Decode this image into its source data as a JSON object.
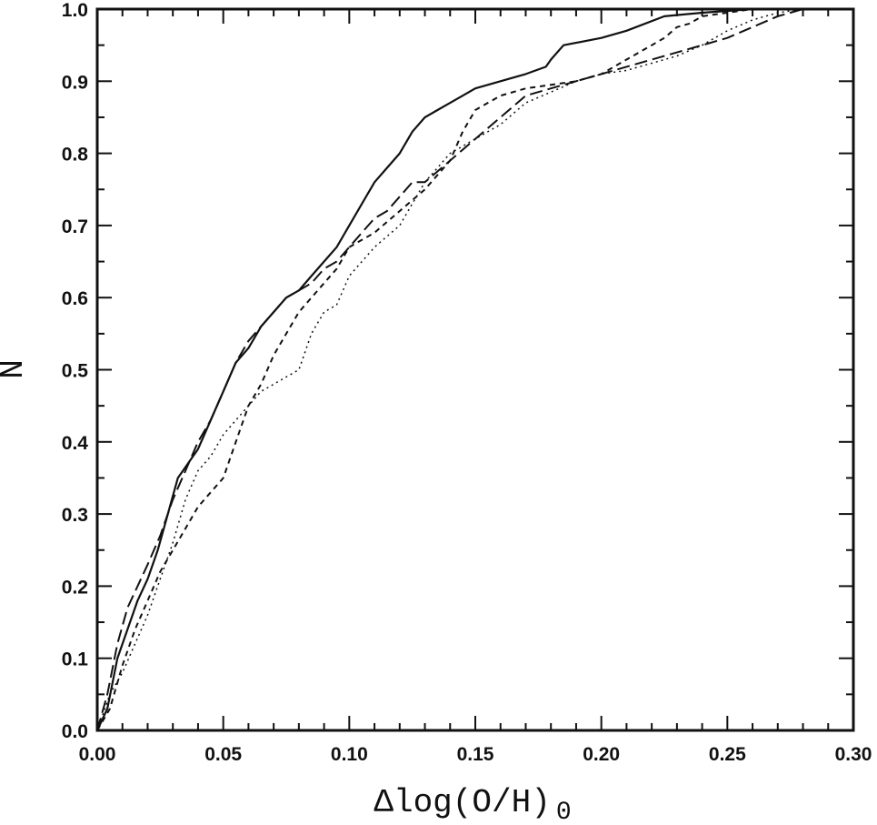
{
  "chart_data": {
    "type": "line",
    "title": "",
    "xlabel": "Δlog(O/H)",
    "xlabel_subscript": "0",
    "ylabel": "N",
    "xlim": [
      0.0,
      0.3
    ],
    "ylim": [
      0.0,
      1.0
    ],
    "xticks": [
      "0.00",
      "0.05",
      "0.10",
      "0.15",
      "0.20",
      "0.25",
      "0.30"
    ],
    "yticks": [
      "0.0",
      "0.1",
      "0.2",
      "0.3",
      "0.4",
      "0.5",
      "0.6",
      "0.7",
      "0.8",
      "0.9",
      "1.0"
    ],
    "grid": false,
    "legend": "none",
    "series": [
      {
        "style": "solid",
        "x": [
          0.0,
          0.004,
          0.008,
          0.012,
          0.016,
          0.02,
          0.024,
          0.028,
          0.032,
          0.036,
          0.04,
          0.045,
          0.05,
          0.055,
          0.06,
          0.065,
          0.07,
          0.075,
          0.08,
          0.085,
          0.09,
          0.095,
          0.1,
          0.105,
          0.11,
          0.115,
          0.12,
          0.125,
          0.13,
          0.135,
          0.14,
          0.145,
          0.15,
          0.16,
          0.17,
          0.178,
          0.18,
          0.185,
          0.2,
          0.21,
          0.225,
          0.24,
          0.26,
          0.29
        ],
        "y": [
          0.0,
          0.03,
          0.1,
          0.14,
          0.18,
          0.21,
          0.25,
          0.3,
          0.35,
          0.37,
          0.39,
          0.43,
          0.47,
          0.51,
          0.53,
          0.56,
          0.58,
          0.6,
          0.61,
          0.63,
          0.65,
          0.67,
          0.7,
          0.73,
          0.76,
          0.78,
          0.8,
          0.83,
          0.85,
          0.86,
          0.87,
          0.88,
          0.89,
          0.9,
          0.91,
          0.92,
          0.93,
          0.95,
          0.96,
          0.97,
          0.99,
          0.995,
          1.0,
          1.0
        ]
      },
      {
        "style": "long-dash",
        "x": [
          0.0,
          0.004,
          0.008,
          0.012,
          0.016,
          0.02,
          0.025,
          0.03,
          0.035,
          0.04,
          0.045,
          0.05,
          0.055,
          0.06,
          0.065,
          0.07,
          0.075,
          0.08,
          0.085,
          0.09,
          0.095,
          0.1,
          0.105,
          0.11,
          0.115,
          0.12,
          0.125,
          0.13,
          0.14,
          0.15,
          0.16,
          0.17,
          0.18,
          0.19,
          0.2,
          0.21,
          0.22,
          0.23,
          0.24,
          0.25,
          0.26,
          0.27,
          0.28,
          0.29
        ],
        "y": [
          0.0,
          0.05,
          0.12,
          0.17,
          0.2,
          0.23,
          0.27,
          0.32,
          0.36,
          0.4,
          0.43,
          0.47,
          0.51,
          0.54,
          0.56,
          0.58,
          0.6,
          0.61,
          0.62,
          0.64,
          0.65,
          0.67,
          0.69,
          0.71,
          0.72,
          0.74,
          0.76,
          0.76,
          0.79,
          0.82,
          0.85,
          0.88,
          0.89,
          0.9,
          0.91,
          0.92,
          0.93,
          0.94,
          0.95,
          0.96,
          0.975,
          0.99,
          1.0,
          1.0
        ]
      },
      {
        "style": "short-dash",
        "x": [
          0.0,
          0.005,
          0.01,
          0.015,
          0.02,
          0.025,
          0.03,
          0.035,
          0.04,
          0.045,
          0.05,
          0.055,
          0.06,
          0.065,
          0.07,
          0.075,
          0.08,
          0.085,
          0.09,
          0.095,
          0.1,
          0.11,
          0.12,
          0.13,
          0.14,
          0.145,
          0.15,
          0.16,
          0.17,
          0.18,
          0.19,
          0.2,
          0.21,
          0.22,
          0.225,
          0.23,
          0.235,
          0.24,
          0.25,
          0.26,
          0.27,
          0.28
        ],
        "y": [
          0.0,
          0.03,
          0.09,
          0.14,
          0.18,
          0.22,
          0.25,
          0.28,
          0.31,
          0.33,
          0.35,
          0.4,
          0.45,
          0.48,
          0.52,
          0.55,
          0.58,
          0.6,
          0.62,
          0.64,
          0.67,
          0.69,
          0.72,
          0.75,
          0.79,
          0.83,
          0.86,
          0.88,
          0.89,
          0.895,
          0.9,
          0.91,
          0.93,
          0.95,
          0.96,
          0.975,
          0.98,
          0.99,
          0.995,
          1.0,
          1.0,
          1.0
        ]
      },
      {
        "style": "dotted",
        "x": [
          0.0,
          0.005,
          0.01,
          0.015,
          0.02,
          0.025,
          0.03,
          0.035,
          0.04,
          0.045,
          0.05,
          0.055,
          0.06,
          0.065,
          0.07,
          0.075,
          0.08,
          0.085,
          0.09,
          0.095,
          0.1,
          0.11,
          0.12,
          0.13,
          0.14,
          0.15,
          0.16,
          0.17,
          0.18,
          0.19,
          0.2,
          0.21,
          0.22,
          0.23,
          0.24,
          0.25,
          0.26,
          0.27,
          0.28
        ],
        "y": [
          0.0,
          0.05,
          0.08,
          0.12,
          0.16,
          0.21,
          0.26,
          0.32,
          0.36,
          0.38,
          0.41,
          0.43,
          0.45,
          0.47,
          0.48,
          0.49,
          0.5,
          0.55,
          0.58,
          0.59,
          0.63,
          0.67,
          0.7,
          0.76,
          0.8,
          0.82,
          0.84,
          0.87,
          0.885,
          0.9,
          0.91,
          0.915,
          0.925,
          0.935,
          0.95,
          0.97,
          0.985,
          0.995,
          1.0
        ]
      }
    ]
  }
}
